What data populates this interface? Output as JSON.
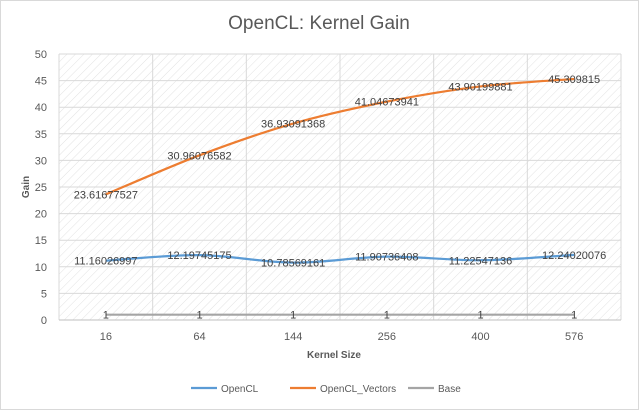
{
  "chart_data": {
    "type": "line",
    "title": "OpenCL: Kernel Gain",
    "xlabel": "Kernel Size",
    "ylabel": "Gain",
    "categories": [
      "16",
      "64",
      "144",
      "256",
      "400",
      "576"
    ],
    "ylim": [
      0,
      50
    ],
    "yticks": [
      0,
      5,
      10,
      15,
      20,
      25,
      30,
      35,
      40,
      45,
      50
    ],
    "grid": true,
    "legend": "bottom",
    "series": [
      {
        "name": "OpenCL",
        "color": "#5b9bd5",
        "values": [
          11.16026997,
          12.19745175,
          10.78569161,
          11.90736408,
          11.22547136,
          12.24020076
        ],
        "labels": [
          "11.16026997",
          "12.19745175",
          "10.78569161",
          "11.90736408",
          "11.22547136",
          "12.24020076"
        ]
      },
      {
        "name": "OpenCL_Vectors",
        "color": "#ed7d31",
        "values": [
          23.61677527,
          30.96076582,
          36.93091368,
          41.04673941,
          43.90199881,
          45.309815
        ],
        "labels": [
          "23.61677527",
          "30.96076582",
          "36.93091368",
          "41.04673941",
          "43.90199881",
          "45.309815"
        ]
      },
      {
        "name": "Base",
        "color": "#a5a5a5",
        "values": [
          1,
          1,
          1,
          1,
          1,
          1
        ],
        "labels": [
          "1",
          "1",
          "1",
          "1",
          "1",
          "1"
        ]
      }
    ]
  }
}
